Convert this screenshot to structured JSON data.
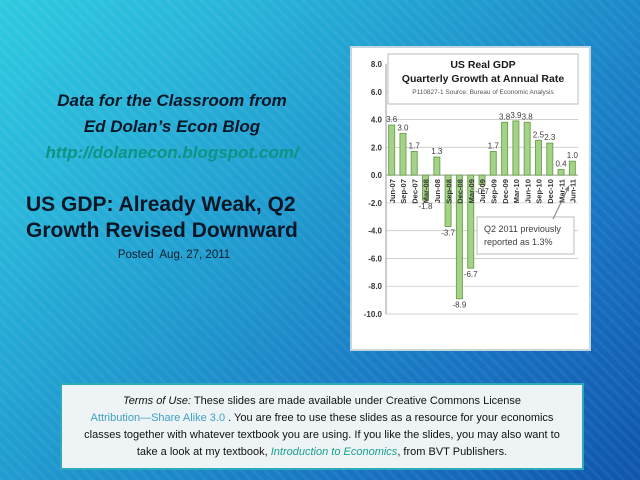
{
  "slide": {
    "header": {
      "line1": "Data for the Classroom from",
      "line2": "Ed Dolan’s Econ Blog",
      "url": "http://dolanecon.blogspot.com/"
    },
    "title": {
      "line1": "US GDP: Already Weak, Q2",
      "line2": "Growth Revised Downward",
      "posted": "Posted  Aug. 27, 2011"
    }
  },
  "chart_data": {
    "type": "bar",
    "title": "US  Real GDP",
    "subtitle": "Quarterly Growth at Annual Rate",
    "source_note": "P110827-1 Source: Bureau of Economic Analysis",
    "categories": [
      "Jun-07",
      "Sep-07",
      "Dec-07",
      "Mar-08",
      "Jun-08",
      "Sep-08",
      "Dec-08",
      "Mar-09",
      "Jun-09",
      "Sep-09",
      "Dec-09",
      "Mar-10",
      "Jun-10",
      "Sep-10",
      "Dec-10",
      "Mar-11",
      "Jun-11"
    ],
    "values": [
      3.6,
      3.0,
      1.7,
      -1.8,
      1.3,
      -3.7,
      -8.9,
      -6.7,
      -0.7,
      1.7,
      3.8,
      3.9,
      3.8,
      2.5,
      2.3,
      0.4,
      1.0
    ],
    "ylim": [
      -10,
      8
    ],
    "ytick_step": 2,
    "ytick_labels": [
      "8.0",
      "6.0",
      "4.0",
      "2.0",
      "0.0",
      "-2.0",
      "-4.0",
      "-6.0",
      "-8.0",
      "-10.0"
    ],
    "grid": true,
    "legend": false,
    "data_labels": true,
    "bar_fill": "#a5d28a",
    "bar_stroke": "#6fa84e",
    "grid_color": "#c9c9c9",
    "axis_color": "#999999",
    "annotation": {
      "line1": "Q2 2011  previously",
      "line2": "reported as 1.3%",
      "target_category": "Jun-11"
    }
  },
  "terms": {
    "line1_italic": "Terms of Use:",
    "line1_rest": " These slides are made available under Creative Commons License",
    "line2_link": "Attribution—Share Alike 3.0",
    "line2_rest": " . You are free to use these slides as a resource for your economics",
    "line3": "classes together with whatever textbook you are using. If you like the slides, you may also want to",
    "line4_pre": "take a look at my textbook, ",
    "line4_book": "Introduction to Economics",
    "line4_post": ", from BVT Publishers."
  },
  "colors": {
    "background_top": "#2ecadf",
    "background_bottom": "#0f55ab",
    "header_text": "#0a1626",
    "url_teal": "#0d9484",
    "terms_border_teal": "#2da9bd",
    "terms_link_blue": "#3f9fc4",
    "terms_book_teal": "#17a08b",
    "bar_green": "#a5d28a"
  }
}
